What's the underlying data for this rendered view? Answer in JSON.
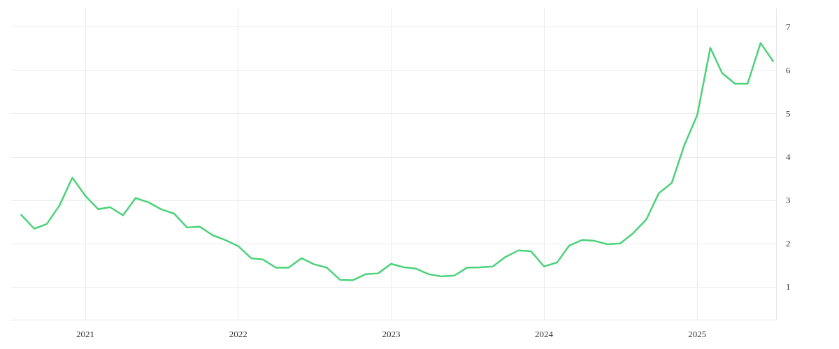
{
  "chart_data": {
    "type": "line",
    "x": [
      "2020-08",
      "2020-09",
      "2020-10",
      "2020-11",
      "2020-12",
      "2021-01",
      "2021-02",
      "2021-03",
      "2021-04",
      "2021-05",
      "2021-06",
      "2021-07",
      "2021-08",
      "2021-09",
      "2021-10",
      "2021-11",
      "2021-12",
      "2022-01",
      "2022-02",
      "2022-03",
      "2022-04",
      "2022-05",
      "2022-06",
      "2022-07",
      "2022-08",
      "2022-09",
      "2022-10",
      "2022-11",
      "2022-12",
      "2023-01",
      "2023-02",
      "2023-03",
      "2023-04",
      "2023-05",
      "2023-06",
      "2023-07",
      "2023-08",
      "2023-09",
      "2023-10",
      "2023-11",
      "2023-12",
      "2024-01",
      "2024-02",
      "2024-03",
      "2024-04",
      "2024-05",
      "2024-06",
      "2024-07",
      "2024-08",
      "2024-09",
      "2024-10",
      "2024-11",
      "2024-12",
      "2025-01",
      "2025-02",
      "2025-03",
      "2025-04",
      "2025-05",
      "2025-06",
      "2025-07"
    ],
    "series": [
      {
        "color": "#4cd27a",
        "values": [
          2.66,
          2.34,
          2.45,
          2.89,
          3.52,
          3.1,
          2.79,
          2.84,
          2.65,
          3.05,
          2.95,
          2.79,
          2.69,
          2.37,
          2.39,
          2.19,
          2.08,
          1.94,
          1.66,
          1.63,
          1.44,
          1.44,
          1.66,
          1.52,
          1.44,
          1.16,
          1.15,
          1.29,
          1.31,
          1.53,
          1.45,
          1.42,
          1.29,
          1.24,
          1.26,
          1.44,
          1.45,
          1.47,
          1.69,
          1.84,
          1.82,
          1.47,
          1.56,
          1.95,
          2.08,
          2.06,
          1.98,
          2.0,
          2.24,
          2.55,
          3.16,
          3.4,
          4.27,
          4.97,
          6.52,
          5.94,
          5.69,
          5.69,
          6.63,
          6.21
        ]
      }
    ],
    "xlim": [
      "2020-07-08",
      "2025-07-08"
    ],
    "xticks": [
      "2021",
      "2022",
      "2023",
      "2024",
      "2025"
    ],
    "ylim": [
      0.24,
      7.43
    ],
    "yticks": [
      1,
      2,
      3,
      4,
      5,
      6,
      7
    ],
    "grid": true,
    "marker": "none",
    "line_style": "solid"
  }
}
